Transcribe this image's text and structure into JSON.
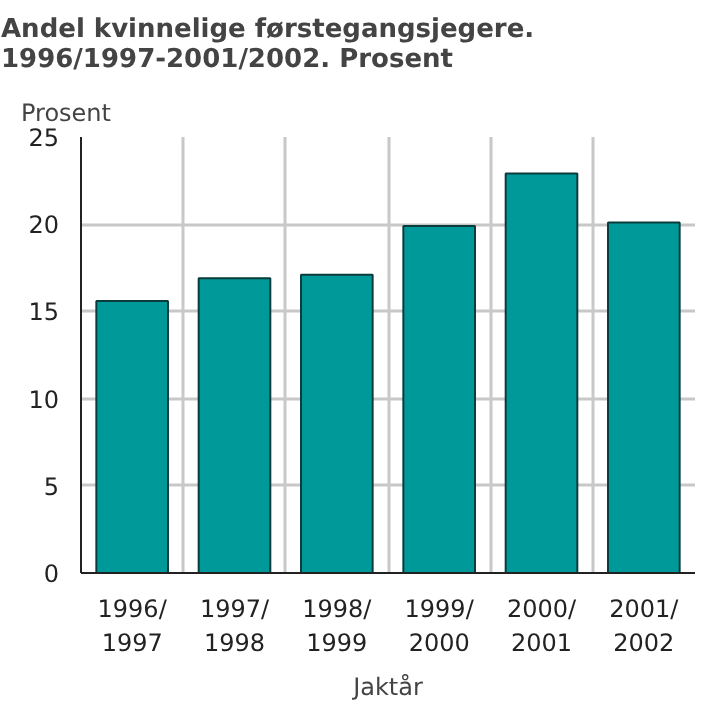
{
  "chart_data": {
    "type": "bar",
    "title": "Andel kvinnelige førstegangsjegere. 1996/1997-2001/2002. Prosent",
    "ylabel": "Prosent",
    "xlabel": "Jaktår",
    "categories": [
      "1996/1997",
      "1997/1998",
      "1998/1999",
      "1999/2000",
      "2000/2001",
      "2001/2002"
    ],
    "values": [
      15.6,
      16.9,
      17.1,
      19.9,
      22.9,
      20.1
    ],
    "color": "#009999",
    "ylim": [
      0,
      25
    ],
    "yticks": [
      0,
      5,
      10,
      15,
      20,
      25
    ],
    "grid": true
  }
}
